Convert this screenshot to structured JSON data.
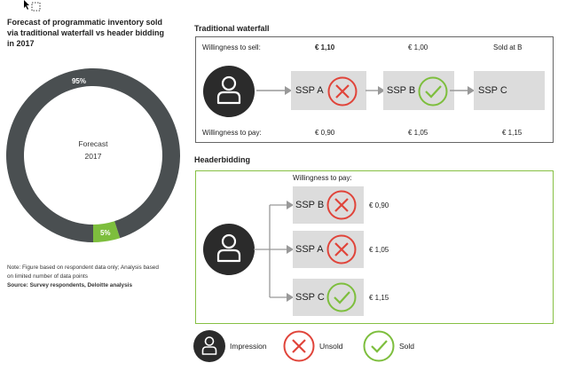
{
  "left": {
    "title": "Forecast of programmatic inventory sold via traditional waterfall vs header bidding in 2017",
    "title_lines": [
      "Forecast of programmatic inventory sold",
      "via traditional waterfall vs header bidding",
      "in 2017"
    ],
    "donut_center": [
      "Forecast",
      "2017"
    ],
    "note_lines": [
      "Note: Figure based on respondent data only; Analysis based",
      "on limited number of data points"
    ],
    "source": "Source: Survey respondents, Deloitte analysis"
  },
  "chart_data": {
    "type": "pie",
    "categories": [
      "Traditional waterfall",
      "Header bidding"
    ],
    "values": [
      95,
      5
    ],
    "labels": [
      "95%",
      "5%"
    ],
    "colors": [
      "#4a4f51",
      "#7dbe3d"
    ],
    "center_text": [
      "Forecast",
      "2017"
    ]
  },
  "waterfall": {
    "title": "Traditional waterfall",
    "sell_label": "Willingness to sell:",
    "sell_values": [
      "€ 1,10",
      "€ 1,00",
      "Sold at B"
    ],
    "pay_label": "Willingness to pay:",
    "pay_values": [
      "€ 0,90",
      "€ 1,05",
      "€ 1,15"
    ],
    "ssps": [
      "SSP A",
      "SSP B",
      "SSP C"
    ]
  },
  "headerbidding": {
    "title": "Headerbidding",
    "pay_label": "Willingness to pay:",
    "rows": [
      {
        "ssp": "SSP B",
        "status": "unsold",
        "price": "€ 0,90"
      },
      {
        "ssp": "SSP A",
        "status": "unsold",
        "price": "€ 1,05"
      },
      {
        "ssp": "SSP C",
        "status": "sold",
        "price": "€ 1,15"
      }
    ]
  },
  "legend": {
    "impression": "Impression",
    "unsold": "Unsold",
    "sold": "Sold"
  },
  "colors": {
    "dark": "#2b2b2b",
    "donut_dark": "#4a4f51",
    "green": "#7dbe3d",
    "red": "#e0443a",
    "ssp_box": "#dcdcdc"
  }
}
